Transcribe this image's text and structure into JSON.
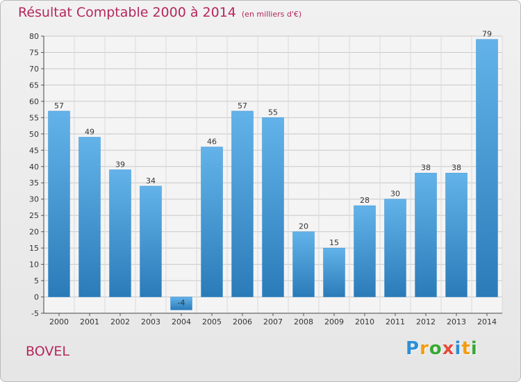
{
  "chart_data": {
    "type": "bar",
    "title": "Résultat Comptable 2000 à 2014",
    "subtitle": "(en milliers d'€)",
    "categories": [
      "2000",
      "2001",
      "2002",
      "2003",
      "2004",
      "2005",
      "2006",
      "2007",
      "2008",
      "2009",
      "2010",
      "2011",
      "2012",
      "2013",
      "2014"
    ],
    "values": [
      57,
      49,
      39,
      34,
      -4,
      46,
      57,
      55,
      20,
      15,
      28,
      30,
      38,
      38,
      79
    ],
    "ylim": [
      -5,
      80
    ],
    "yticks": [
      -5,
      0,
      5,
      10,
      15,
      20,
      25,
      30,
      35,
      40,
      45,
      50,
      55,
      60,
      65,
      70,
      75,
      80
    ],
    "grid": true,
    "colors": {
      "bar_top": "#63b3ea",
      "bar_bottom": "#2a7bb8",
      "title": "#b5265c"
    }
  },
  "commune": "BOVEL",
  "logo": {
    "letters": [
      "P",
      "r",
      "o",
      "x",
      "i",
      "t",
      "i"
    ],
    "colors": [
      "#2d8fd5",
      "#f39c12",
      "#39a935",
      "#e74c3c",
      "#2d8fd5",
      "#f39c12",
      "#39a935"
    ]
  }
}
